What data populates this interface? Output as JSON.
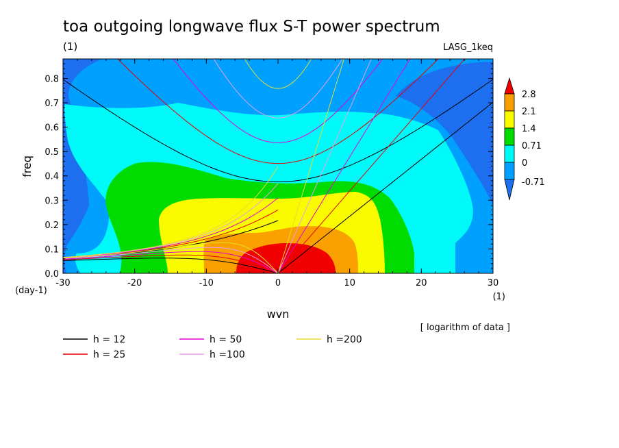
{
  "chart_data": {
    "type": "heatmap",
    "title": "toa outgoing longwave flux S-T power spectrum",
    "units_label": "(1)",
    "model_label": "LASG_1keq",
    "xlabel": "wvn",
    "x_units_label": "(1)",
    "ylabel": "freq",
    "y_units_label": "(day-1)",
    "xlim": [
      -30,
      30
    ],
    "ylim": [
      0,
      0.88
    ],
    "x_ticks": [
      "-30",
      "-20",
      "-10",
      "0",
      "10",
      "20",
      "30"
    ],
    "y_ticks": [
      "0.0",
      "0.1",
      "0.2",
      "0.3",
      "0.4",
      "0.5",
      "0.6",
      "0.7",
      "0.8"
    ],
    "note": "[ logarithm of data ]",
    "colorbar": {
      "labels": [
        "2.8",
        "2.1",
        "1.4",
        "0.71",
        "0",
        "-0.71"
      ],
      "levels": [
        -0.71,
        0,
        0.71,
        1.4,
        2.1,
        2.8
      ],
      "colors": [
        "#1E6EF0",
        "#00A0FF",
        "#00FAFA",
        "#00DC00",
        "#FAFA00",
        "#FAA000",
        "#F00000"
      ]
    },
    "dispersion_curves": [
      {
        "label": "h = 12",
        "h": 12,
        "color": "#000000"
      },
      {
        "label": "h = 25",
        "h": 25,
        "color": "#E60000"
      },
      {
        "label": "h = 50",
        "h": 50,
        "color": "#E600D2"
      },
      {
        "label": "h =100",
        "h": 100,
        "color": "#E6A0E6"
      },
      {
        "label": "h =200",
        "h": 200,
        "color": "#E6DC32"
      }
    ]
  }
}
